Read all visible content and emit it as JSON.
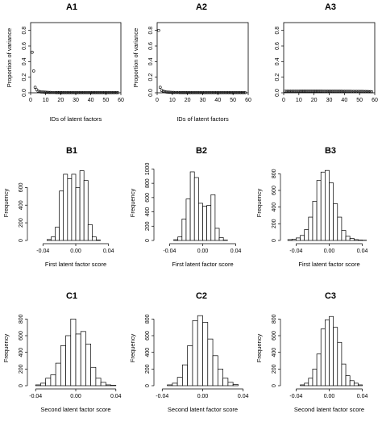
{
  "chart_data": [
    {
      "panel": "A1",
      "title": "A1",
      "type": "scatter",
      "xlabel": "IDs of latent factors",
      "ylabel": "Proportion of variance",
      "xlim": [
        0,
        60
      ],
      "ylim": [
        0,
        0.9
      ],
      "xticks": [
        "0",
        "10",
        "20",
        "30",
        "40",
        "50",
        "60"
      ],
      "yticks": [
        "0.0",
        "0.2",
        "0.4",
        "0.6",
        "0.8"
      ],
      "x": [
        1,
        2,
        3,
        4,
        5,
        6,
        7,
        8,
        9,
        10,
        11,
        12,
        13,
        14,
        15,
        16,
        17,
        18,
        19,
        20,
        21,
        22,
        23,
        24,
        25,
        26,
        27,
        28,
        29,
        30,
        31,
        32,
        33,
        34,
        35,
        36,
        37,
        38,
        39,
        40,
        41,
        42,
        43,
        44,
        45,
        46,
        47,
        48,
        49,
        50,
        51,
        52,
        53,
        54,
        55,
        56,
        57,
        58
      ],
      "y": [
        0.52,
        0.28,
        0.07,
        0.04,
        0.02,
        0.015,
        0.01,
        0.01,
        0.008,
        0.007,
        0.006,
        0.005,
        0.005,
        0.004,
        0.004,
        0.004,
        0.003,
        0.003,
        0.003,
        0.003,
        0.003,
        0.002,
        0.002,
        0.002,
        0.002,
        0.002,
        0.002,
        0.002,
        0.002,
        0.002,
        0.002,
        0.002,
        0.002,
        0.002,
        0.002,
        0.002,
        0.002,
        0.002,
        0.002,
        0.002,
        0.002,
        0.002,
        0.002,
        0.002,
        0.002,
        0.002,
        0.002,
        0.002,
        0.002,
        0.002,
        0.002,
        0.002,
        0.002,
        0.002,
        0.002,
        0.002,
        0.002,
        0.002
      ]
    },
    {
      "panel": "A2",
      "title": "A2",
      "type": "scatter",
      "xlabel": "IDs of latent factors",
      "ylabel": "Proportion of variance",
      "xlim": [
        0,
        60
      ],
      "ylim": [
        0,
        0.9
      ],
      "xticks": [
        "0",
        "10",
        "20",
        "30",
        "40",
        "50",
        "60"
      ],
      "yticks": [
        "0.0",
        "0.2",
        "0.4",
        "0.6",
        "0.8"
      ],
      "x": [
        1,
        2,
        3,
        4,
        5,
        6,
        7,
        8,
        9,
        10,
        11,
        12,
        13,
        14,
        15,
        16,
        17,
        18,
        19,
        20,
        21,
        22,
        23,
        24,
        25,
        26,
        27,
        28,
        29,
        30,
        31,
        32,
        33,
        34,
        35,
        36,
        37,
        38,
        39,
        40,
        41,
        42,
        43,
        44,
        45,
        46,
        47,
        48,
        49,
        50,
        51,
        52,
        53,
        54,
        55,
        56,
        57,
        58
      ],
      "y": [
        0.8,
        0.07,
        0.03,
        0.02,
        0.015,
        0.01,
        0.008,
        0.007,
        0.006,
        0.005,
        0.005,
        0.004,
        0.004,
        0.004,
        0.003,
        0.003,
        0.003,
        0.003,
        0.003,
        0.002,
        0.002,
        0.002,
        0.002,
        0.002,
        0.002,
        0.002,
        0.002,
        0.002,
        0.002,
        0.002,
        0.002,
        0.002,
        0.002,
        0.002,
        0.002,
        0.002,
        0.002,
        0.002,
        0.002,
        0.002,
        0.002,
        0.002,
        0.002,
        0.002,
        0.002,
        0.002,
        0.002,
        0.002,
        0.002,
        0.002,
        0.002,
        0.002,
        0.002,
        0.002,
        0.002,
        0.002,
        0.002,
        0.002
      ]
    },
    {
      "panel": "A3",
      "title": "A3",
      "type": "scatter",
      "xlabel": "",
      "ylabel": "",
      "xlim": [
        0,
        60
      ],
      "ylim": [
        0,
        0.9
      ],
      "xticks": [
        "0",
        "10",
        "20",
        "30",
        "40",
        "50",
        "60"
      ],
      "yticks": [
        "0.0",
        "0.2",
        "0.4",
        "0.6",
        "0.8"
      ],
      "x": [
        1,
        2,
        3,
        4,
        5,
        6,
        7,
        8,
        9,
        10,
        11,
        12,
        13,
        14,
        15,
        16,
        17,
        18,
        19,
        20,
        21,
        22,
        23,
        24,
        25,
        26,
        27,
        28,
        29,
        30,
        31,
        32,
        33,
        34,
        35,
        36,
        37,
        38,
        39,
        40,
        41,
        42,
        43,
        44,
        45,
        46,
        47,
        48,
        49,
        50,
        51,
        52,
        53,
        54,
        55,
        56,
        57,
        58
      ],
      "y": [
        0.022,
        0.022,
        0.022,
        0.022,
        0.022,
        0.022,
        0.022,
        0.022,
        0.022,
        0.022,
        0.021,
        0.021,
        0.021,
        0.021,
        0.021,
        0.021,
        0.021,
        0.021,
        0.021,
        0.021,
        0.021,
        0.021,
        0.021,
        0.021,
        0.021,
        0.02,
        0.02,
        0.02,
        0.02,
        0.02,
        0.02,
        0.02,
        0.02,
        0.02,
        0.02,
        0.02,
        0.02,
        0.02,
        0.019,
        0.019,
        0.019,
        0.019,
        0.019,
        0.019,
        0.018,
        0.018,
        0.018,
        0.018,
        0.018,
        0.017,
        0.017,
        0.017,
        0.016,
        0.016,
        0.016,
        0.015,
        0.015,
        0.014
      ]
    },
    {
      "panel": "B1",
      "title": "B1",
      "type": "bar",
      "xlabel": "First latent factor score",
      "ylabel": "Frequency",
      "xlim": [
        -0.055,
        0.055
      ],
      "ylim": [
        0,
        850
      ],
      "xticks": [
        "-0.04",
        "0.00",
        "0.04"
      ],
      "yticks": [
        "0",
        "200",
        "400",
        "600"
      ],
      "bin_start": -0.035,
      "bin_width": 0.005,
      "values": [
        10,
        40,
        150,
        560,
        750,
        700,
        750,
        600,
        790,
        680,
        180,
        40,
        5
      ]
    },
    {
      "panel": "B2",
      "title": "B2",
      "type": "bar",
      "xlabel": "First latent factor score",
      "ylabel": "Frequency",
      "xlim": [
        -0.055,
        0.055
      ],
      "ylim": [
        0,
        1050
      ],
      "xticks": [
        "-0.04",
        "0.00",
        "0.04"
      ],
      "yticks": [
        "0",
        "200",
        "400",
        "600",
        "800",
        "1000"
      ],
      "bin_start": -0.035,
      "bin_width": 0.005,
      "values": [
        10,
        50,
        300,
        580,
        960,
        880,
        520,
        480,
        490,
        640,
        170,
        40,
        5
      ]
    },
    {
      "panel": "B3",
      "title": "B3",
      "type": "bar",
      "xlabel": "First latent factor score",
      "ylabel": "Frequency",
      "xlim": [
        -0.055,
        0.055
      ],
      "ylim": [
        0,
        900
      ],
      "xticks": [
        "-0.04",
        "0.00",
        "0.04"
      ],
      "yticks": [
        "0",
        "200",
        "400",
        "600",
        "800"
      ],
      "bin_start": -0.05,
      "bin_width": 0.005,
      "values": [
        10,
        15,
        30,
        60,
        130,
        280,
        470,
        720,
        820,
        840,
        690,
        440,
        280,
        120,
        50,
        25,
        10,
        5,
        3
      ]
    },
    {
      "panel": "C1",
      "title": "C1",
      "type": "bar",
      "xlabel": "Second latent factor score",
      "ylabel": "Frequency",
      "xlim": [
        -0.045,
        0.045
      ],
      "ylim": [
        0,
        900
      ],
      "xticks": [
        "-0.04",
        "0.00",
        "0.04"
      ],
      "yticks": [
        "0",
        "200",
        "400",
        "600",
        "800"
      ],
      "bin_start": -0.04,
      "bin_width": 0.005,
      "values": [
        10,
        30,
        90,
        130,
        270,
        480,
        600,
        800,
        620,
        650,
        500,
        220,
        90,
        40,
        10,
        5
      ]
    },
    {
      "panel": "C2",
      "title": "C2",
      "type": "bar",
      "xlabel": "Second latent factor score",
      "ylabel": "Frequency",
      "xlim": [
        -0.045,
        0.045
      ],
      "ylim": [
        0,
        900
      ],
      "xticks": [
        "-0.04",
        "0.00",
        "0.04"
      ],
      "yticks": [
        "0",
        "200",
        "400",
        "600",
        "800"
      ],
      "bin_start": -0.035,
      "bin_width": 0.005,
      "values": [
        10,
        30,
        100,
        250,
        480,
        780,
        840,
        760,
        560,
        360,
        200,
        90,
        40,
        15
      ]
    },
    {
      "panel": "C3",
      "title": "C3",
      "type": "bar",
      "xlabel": "Second latent factor score",
      "ylabel": "Frequency",
      "xlim": [
        -0.055,
        0.055
      ],
      "ylim": [
        0,
        900
      ],
      "xticks": [
        "-0.04",
        "0.00",
        "0.04"
      ],
      "yticks": [
        "0",
        "200",
        "400",
        "600",
        "800"
      ],
      "bin_start": -0.035,
      "bin_width": 0.005,
      "values": [
        10,
        30,
        90,
        200,
        380,
        680,
        790,
        830,
        700,
        520,
        260,
        120,
        60,
        30,
        10
      ]
    }
  ]
}
